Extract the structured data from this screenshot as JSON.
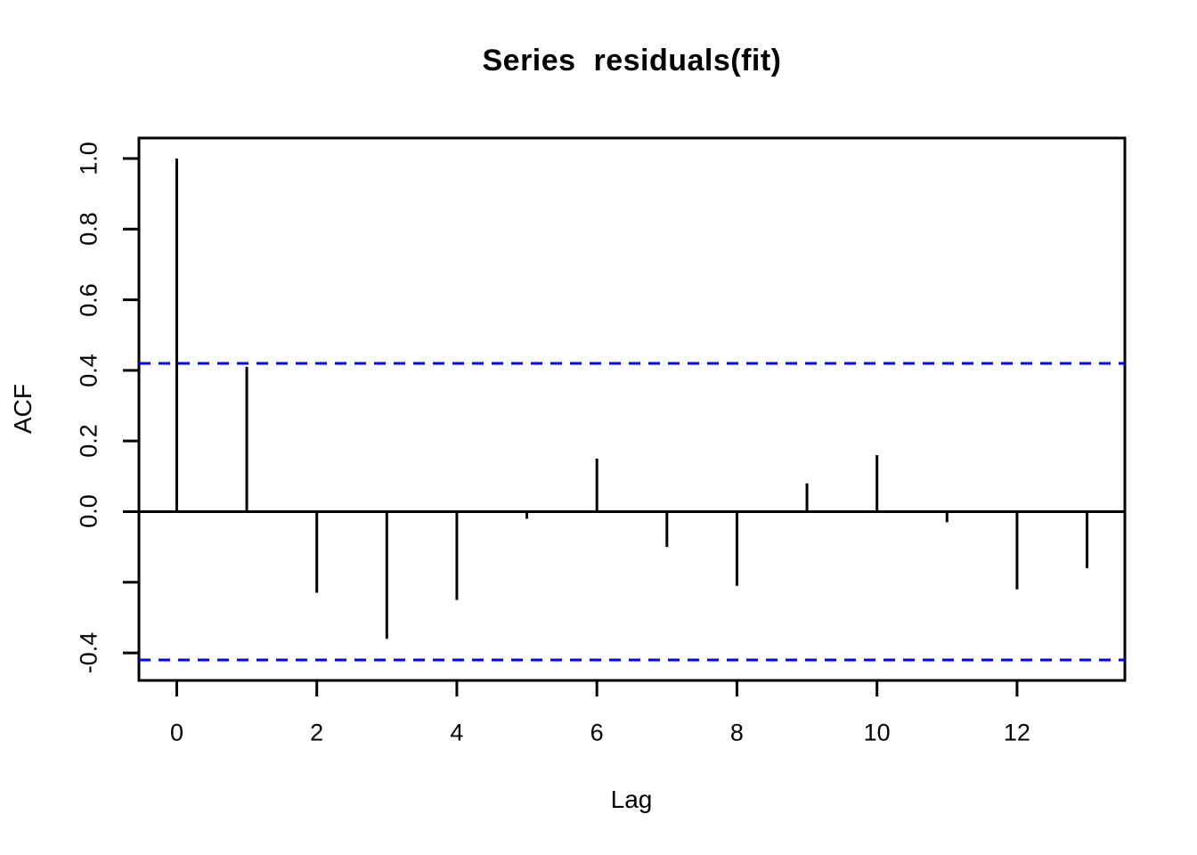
{
  "figure": {
    "background": "#FFFFFF"
  },
  "chart_data": {
    "type": "bar",
    "subtype": "acf-stem-plot",
    "title": "Series  residuals(fit)",
    "xlabel": "Lag",
    "ylabel": "ACF",
    "x": [
      0,
      1,
      2,
      3,
      4,
      5,
      6,
      7,
      8,
      9,
      10,
      11,
      12,
      13
    ],
    "values": [
      1.0,
      0.41,
      -0.23,
      -0.36,
      -0.25,
      -0.02,
      0.15,
      -0.1,
      -0.21,
      0.08,
      0.16,
      -0.03,
      -0.22,
      -0.16
    ],
    "confidence_level_upper": 0.42,
    "confidence_level_lower": -0.42,
    "confidence_line_style": "dashed",
    "x_tick_values": [
      0,
      2,
      4,
      6,
      8,
      10,
      12
    ],
    "x_tick_labels": [
      "0",
      "2",
      "4",
      "6",
      "8",
      "10",
      "12"
    ],
    "y_tick_values": [
      1.0,
      0.8,
      0.6,
      0.4,
      0.2,
      0.0,
      -0.2,
      -0.4
    ],
    "y_tick_labels": [
      "1.0",
      "0.8",
      "0.6",
      "0.4",
      "0.2",
      "0.0",
      "",
      "-0.4"
    ],
    "xlim": [
      -0.54,
      13.54
    ],
    "ylim": [
      -0.478,
      1.058
    ],
    "grid": false,
    "legend": null,
    "colors": {
      "bar": "#000000",
      "axis": "#000000",
      "confidence_line": "#0000FF",
      "text": "#000000"
    }
  }
}
